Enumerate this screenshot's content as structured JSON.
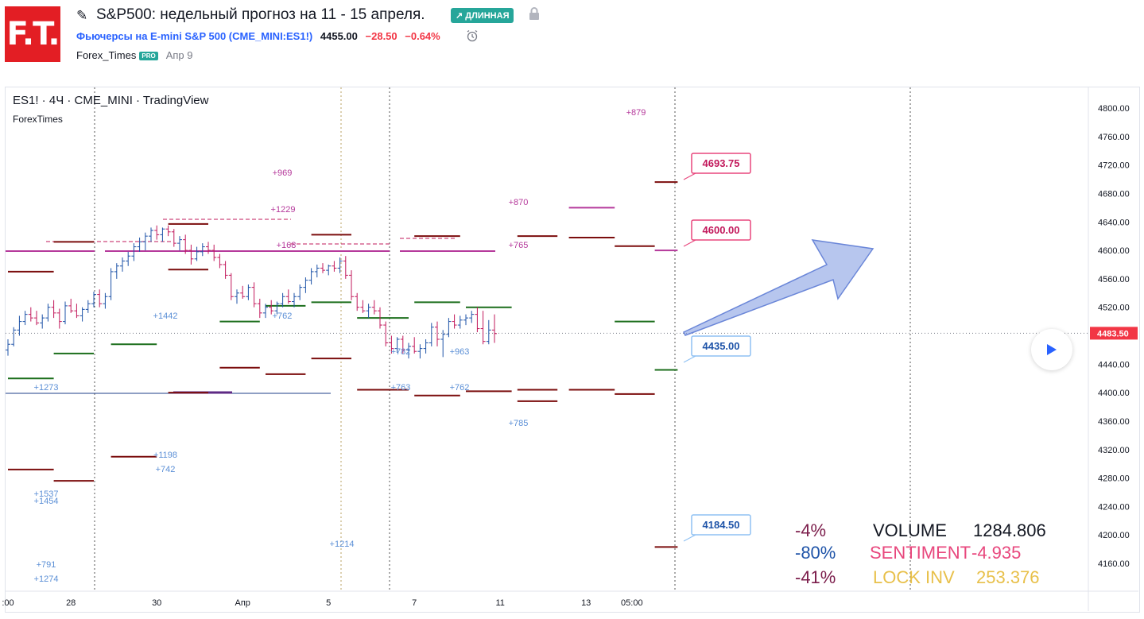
{
  "header": {
    "logo_text": "F.T.",
    "title": "S&P500: недельный прогноз на 11 - 15 апреля.",
    "badge": "↗ ДЛИННАЯ",
    "symbol_full_prefix": "Фьючерсы на E-mini S&P 500 (",
    "symbol_code": "CME_MINI:ES1!",
    "symbol_full_suffix": ")",
    "price": "4455.00",
    "change": "−28.50",
    "change_pct": "−0.64%",
    "author": "Forex_Times",
    "pro_badge": "PRO",
    "date": "Апр 9"
  },
  "chart_header": {
    "symbol_line": "ES1! · 4Ч · CME_MINI · TradingView",
    "author": "ForexTimes"
  },
  "colors": {
    "up": "#1e53a8",
    "down": "#c2185b",
    "dark_red": "#7b0d0d",
    "green": "#1b6e1b",
    "magenta": "#b5399b",
    "accent": "#2962ff"
  },
  "chart_data": {
    "type": "candlestick",
    "y_axis": {
      "range": [
        4140,
        4820
      ],
      "ticks": [
        4800,
        4760,
        4720,
        4680,
        4640,
        4600,
        4560,
        4520,
        4480,
        4440,
        4400,
        4360,
        4320,
        4280,
        4240,
        4200,
        4160
      ]
    },
    "x_axis": {
      "ticks": [
        ":00",
        "28",
        "30",
        "Апр",
        "5",
        "7",
        "11",
        "13",
        "05:00"
      ],
      "tick_index": [
        0,
        11,
        26,
        41,
        56,
        71,
        86,
        101,
        109
      ]
    },
    "current_price": "4483.50",
    "candles": [
      [
        4460,
        4475,
        4452,
        4468
      ],
      [
        4468,
        4492,
        4465,
        4488
      ],
      [
        4488,
        4508,
        4480,
        4500
      ],
      [
        4500,
        4515,
        4495,
        4510
      ],
      [
        4510,
        4520,
        4500,
        4505
      ],
      [
        4505,
        4515,
        4495,
        4498
      ],
      [
        4498,
        4510,
        4490,
        4505
      ],
      [
        4505,
        4525,
        4500,
        4520
      ],
      [
        4520,
        4530,
        4505,
        4512
      ],
      [
        4512,
        4518,
        4490,
        4500
      ],
      [
        4500,
        4528,
        4496,
        4522
      ],
      [
        4522,
        4532,
        4512,
        4515
      ],
      [
        4515,
        4525,
        4505,
        4508
      ],
      [
        4508,
        4520,
        4500,
        4517
      ],
      [
        4517,
        4530,
        4512,
        4525
      ],
      [
        4525,
        4542,
        4520,
        4538
      ],
      [
        4538,
        4545,
        4520,
        4525
      ],
      [
        4525,
        4540,
        4518,
        4535
      ],
      [
        4535,
        4575,
        4530,
        4570
      ],
      [
        4570,
        4582,
        4560,
        4578
      ],
      [
        4578,
        4590,
        4570,
        4585
      ],
      [
        4585,
        4598,
        4578,
        4592
      ],
      [
        4592,
        4610,
        4585,
        4605
      ],
      [
        4605,
        4618,
        4598,
        4612
      ],
      [
        4612,
        4625,
        4600,
        4620
      ],
      [
        4620,
        4632,
        4612,
        4628
      ],
      [
        4628,
        4635,
        4615,
        4622
      ],
      [
        4622,
        4632,
        4612,
        4630
      ],
      [
        4630,
        4635,
        4620,
        4626
      ],
      [
        4626,
        4630,
        4605,
        4610
      ],
      [
        4610,
        4620,
        4600,
        4615
      ],
      [
        4615,
        4622,
        4595,
        4600
      ],
      [
        4600,
        4608,
        4580,
        4588
      ],
      [
        4588,
        4605,
        4585,
        4598
      ],
      [
        4598,
        4610,
        4592,
        4605
      ],
      [
        4605,
        4612,
        4595,
        4600
      ],
      [
        4600,
        4608,
        4585,
        4590
      ],
      [
        4590,
        4595,
        4575,
        4580
      ],
      [
        4580,
        4585,
        4560,
        4565
      ],
      [
        4565,
        4568,
        4530,
        4535
      ],
      [
        4535,
        4545,
        4525,
        4540
      ],
      [
        4540,
        4550,
        4532,
        4535
      ],
      [
        4535,
        4552,
        4530,
        4548
      ],
      [
        4548,
        4555,
        4520,
        4525
      ],
      [
        4525,
        4532,
        4505,
        4512
      ],
      [
        4512,
        4525,
        4505,
        4520
      ],
      [
        4520,
        4530,
        4510,
        4515
      ],
      [
        4515,
        4528,
        4510,
        4525
      ],
      [
        4525,
        4540,
        4520,
        4535
      ],
      [
        4535,
        4545,
        4525,
        4528
      ],
      [
        4528,
        4540,
        4520,
        4535
      ],
      [
        4535,
        4552,
        4530,
        4548
      ],
      [
        4548,
        4562,
        4540,
        4558
      ],
      [
        4558,
        4575,
        4552,
        4570
      ],
      [
        4570,
        4580,
        4562,
        4575
      ],
      [
        4575,
        4582,
        4568,
        4572
      ],
      [
        4572,
        4580,
        4565,
        4578
      ],
      [
        4578,
        4585,
        4570,
        4575
      ],
      [
        4575,
        4590,
        4568,
        4585
      ],
      [
        4585,
        4592,
        4560,
        4565
      ],
      [
        4565,
        4572,
        4530,
        4535
      ],
      [
        4535,
        4540,
        4515,
        4520
      ],
      [
        4520,
        4530,
        4512,
        4515
      ],
      [
        4515,
        4525,
        4505,
        4520
      ],
      [
        4520,
        4530,
        4510,
        4515
      ],
      [
        4515,
        4520,
        4490,
        4495
      ],
      [
        4495,
        4500,
        4465,
        4470
      ],
      [
        4470,
        4480,
        4455,
        4462
      ],
      [
        4462,
        4478,
        4456,
        4475
      ],
      [
        4475,
        4480,
        4455,
        4460
      ],
      [
        4460,
        4470,
        4448,
        4465
      ],
      [
        4465,
        4478,
        4455,
        4458
      ],
      [
        4458,
        4468,
        4448,
        4462
      ],
      [
        4462,
        4475,
        4455,
        4470
      ],
      [
        4470,
        4498,
        4465,
        4492
      ],
      [
        4492,
        4500,
        4465,
        4475
      ],
      [
        4475,
        4488,
        4450,
        4482
      ],
      [
        4482,
        4505,
        4478,
        4500
      ],
      [
        4500,
        4510,
        4490,
        4495
      ],
      [
        4495,
        4508,
        4490,
        4502
      ],
      [
        4502,
        4510,
        4495,
        4505
      ],
      [
        4505,
        4515,
        4498,
        4510
      ],
      [
        4510,
        4520,
        4485,
        4490
      ],
      [
        4490,
        4515,
        4468,
        4472
      ],
      [
        4472,
        4502,
        4468,
        4488
      ],
      [
        4488,
        4510,
        4470,
        4483
      ]
    ],
    "levels": [
      {
        "from": 0,
        "to": 8,
        "price": 4570,
        "color": "dark_red"
      },
      {
        "from": 0,
        "to": 8,
        "price": 4420,
        "color": "green"
      },
      {
        "from": 0,
        "to": 8,
        "price": 4292,
        "color": "dark_red"
      },
      {
        "from": 8,
        "to": 15,
        "price": 4612,
        "color": "dark_red"
      },
      {
        "from": 8,
        "to": 15,
        "price": 4455,
        "color": "green"
      },
      {
        "from": 8,
        "to": 15,
        "price": 4276,
        "color": "dark_red"
      },
      {
        "from": 18,
        "to": 26,
        "price": 4468,
        "color": "green"
      },
      {
        "from": 18,
        "to": 26,
        "price": 4310,
        "color": "dark_red"
      },
      {
        "from": 28,
        "to": 35,
        "price": 4637,
        "color": "dark_red"
      },
      {
        "from": 28,
        "to": 35,
        "price": 4573,
        "color": "dark_red"
      },
      {
        "from": 28,
        "to": 35,
        "price": 4400,
        "color": "dark_red"
      },
      {
        "from": 37,
        "to": 44,
        "price": 4500,
        "color": "green"
      },
      {
        "from": 37,
        "to": 44,
        "price": 4435,
        "color": "dark_red"
      },
      {
        "from": 45,
        "to": 52,
        "price": 4522,
        "color": "green"
      },
      {
        "from": 45,
        "to": 52,
        "price": 4426,
        "color": "dark_red"
      },
      {
        "from": 53,
        "to": 60,
        "price": 4622,
        "color": "dark_red"
      },
      {
        "from": 53,
        "to": 60,
        "price": 4527,
        "color": "green"
      },
      {
        "from": 53,
        "to": 60,
        "price": 4448,
        "color": "dark_red"
      },
      {
        "from": 61,
        "to": 70,
        "price": 4505,
        "color": "green"
      },
      {
        "from": 61,
        "to": 70,
        "price": 4404,
        "color": "dark_red"
      },
      {
        "from": 71,
        "to": 79,
        "price": 4620,
        "color": "dark_red"
      },
      {
        "from": 71,
        "to": 79,
        "price": 4527,
        "color": "green"
      },
      {
        "from": 71,
        "to": 79,
        "price": 4396,
        "color": "dark_red"
      },
      {
        "from": 80,
        "to": 88,
        "price": 4520,
        "color": "green"
      },
      {
        "from": 80,
        "to": 88,
        "price": 4402,
        "color": "dark_red"
      },
      {
        "from": 89,
        "to": 96,
        "price": 4388,
        "color": "dark_red"
      },
      {
        "from": 89,
        "to": 96,
        "price": 4404,
        "color": "dark_red"
      },
      {
        "from": 89,
        "to": 96,
        "price": 4620,
        "color": "dark_red"
      },
      {
        "from": 98,
        "to": 106,
        "price": 4404,
        "color": "dark_red"
      },
      {
        "from": 98,
        "to": 106,
        "price": 4618,
        "color": "dark_red"
      },
      {
        "from": 98,
        "to": 106,
        "price": 4660,
        "color": "magenta"
      },
      {
        "from": 106,
        "to": 113,
        "price": 4398,
        "color": "dark_red"
      },
      {
        "from": 106,
        "to": 113,
        "price": 4500,
        "color": "green"
      },
      {
        "from": 106,
        "to": 113,
        "price": 4606,
        "color": "dark_red"
      },
      {
        "from": 113,
        "to": 117,
        "price": 4696,
        "color": "dark_red"
      },
      {
        "from": 113,
        "to": 117,
        "price": 4432,
        "color": "green"
      },
      {
        "from": 113,
        "to": 117,
        "price": 4183,
        "color": "dark_red"
      },
      {
        "from": 113,
        "to": 117,
        "price": 4600,
        "color": "magenta"
      }
    ],
    "price_labels": [
      "4693.75",
      "4600.00",
      "4435.00",
      "4184.50"
    ],
    "volume_notes": [
      "+879",
      "+969",
      "+1229",
      "+870",
      "+765",
      "+168",
      "+1442",
      "+762",
      "+782",
      "+963",
      "+1273",
      "+763",
      "+762",
      "+785",
      "+1198",
      "+742",
      "+1537",
      "+1454",
      "+1214",
      "+791",
      "+1274"
    ]
  },
  "stats": [
    {
      "pct": "-4%",
      "label": "VOLUME",
      "value": "1284.806"
    },
    {
      "pct": "-80%",
      "label": "SENTIMENT",
      "value": "-4.935"
    },
    {
      "pct": "-41%",
      "label": "LOCK INV",
      "value": "253.376"
    }
  ]
}
